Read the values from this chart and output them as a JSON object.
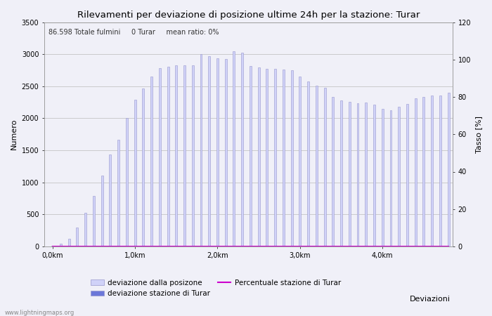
{
  "title": "Rilevamenti per deviazione di posizione ultime 24h per la stazione: Turar",
  "subtitle": "86.598 Totale fulmini     0 Turar     mean ratio: 0%",
  "xlabel": "Deviazioni",
  "ylabel_left": "Numero",
  "ylabel_right": "Tasso [%]",
  "bar_values": [
    10,
    40,
    120,
    300,
    530,
    790,
    1110,
    1430,
    1670,
    2000,
    2290,
    2470,
    2650,
    2780,
    2800,
    2830,
    2830,
    2830,
    3000,
    2970,
    2940,
    2930,
    3040,
    3020,
    2810,
    2790,
    2770,
    2770,
    2760,
    2750,
    2650,
    2570,
    2510,
    2480,
    2330,
    2280,
    2260,
    2240,
    2250,
    2210,
    2150,
    2120,
    2180,
    2220,
    2310,
    2330,
    2350,
    2360,
    2400
  ],
  "station_bar_values": [
    0,
    0,
    0,
    0,
    0,
    0,
    0,
    0,
    0,
    0,
    0,
    0,
    0,
    0,
    0,
    0,
    0,
    0,
    0,
    0,
    0,
    0,
    0,
    0,
    0,
    0,
    0,
    0,
    0,
    0,
    0,
    0,
    0,
    0,
    0,
    0,
    0,
    0,
    0,
    0,
    0,
    0,
    0,
    0,
    0,
    0,
    0,
    0,
    0
  ],
  "ratio_values": [
    0,
    0,
    0,
    0,
    0,
    0,
    0,
    0,
    0,
    0,
    0,
    0,
    0,
    0,
    0,
    0,
    0,
    0,
    0,
    0,
    0,
    0,
    0,
    0,
    0,
    0,
    0,
    0,
    0,
    0,
    0,
    0,
    0,
    0,
    0,
    0,
    0,
    0,
    0,
    0,
    0,
    0,
    0,
    0,
    0,
    0,
    0,
    0,
    0
  ],
  "ylim_left": [
    0,
    3500
  ],
  "ylim_right": [
    0,
    120
  ],
  "yticks_left": [
    0,
    500,
    1000,
    1500,
    2000,
    2500,
    3000,
    3500
  ],
  "yticks_right": [
    0,
    20,
    40,
    60,
    80,
    100,
    120
  ],
  "bar_color_light": "#d0d2f8",
  "bar_color_dark": "#6b77d9",
  "bar_edgecolor": "#9898cc",
  "ratio_line_color": "#cc00cc",
  "grid_color": "#bbbbbb",
  "bg_color": "#f0f0f8",
  "legend_label_light": "deviazione dalla posizone",
  "legend_label_dark": "deviazione stazione di Turar",
  "legend_label_line": "Percentuale stazione di Turar",
  "watermark": "www.lightningmaps.org",
  "n_bars": 49
}
